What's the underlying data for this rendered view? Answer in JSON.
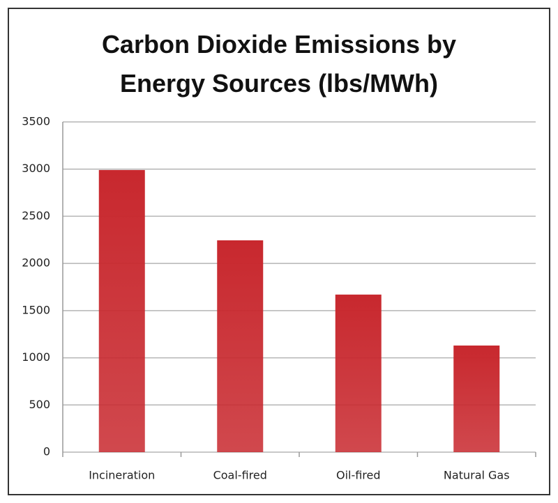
{
  "chart_data": {
    "type": "bar",
    "title": "Carbon Dioxide Emissions by Energy Sources (lbs/MWh)",
    "categories": [
      "Incineration",
      "Coal-fired",
      "Oil-fired",
      "Natural Gas"
    ],
    "values": [
      2990,
      2245,
      1670,
      1130
    ],
    "color": "#c8282e",
    "ylim": [
      0,
      3500
    ],
    "yticks": [
      0,
      500,
      1000,
      1500,
      2000,
      2500,
      3000,
      3500
    ],
    "grid": true
  }
}
